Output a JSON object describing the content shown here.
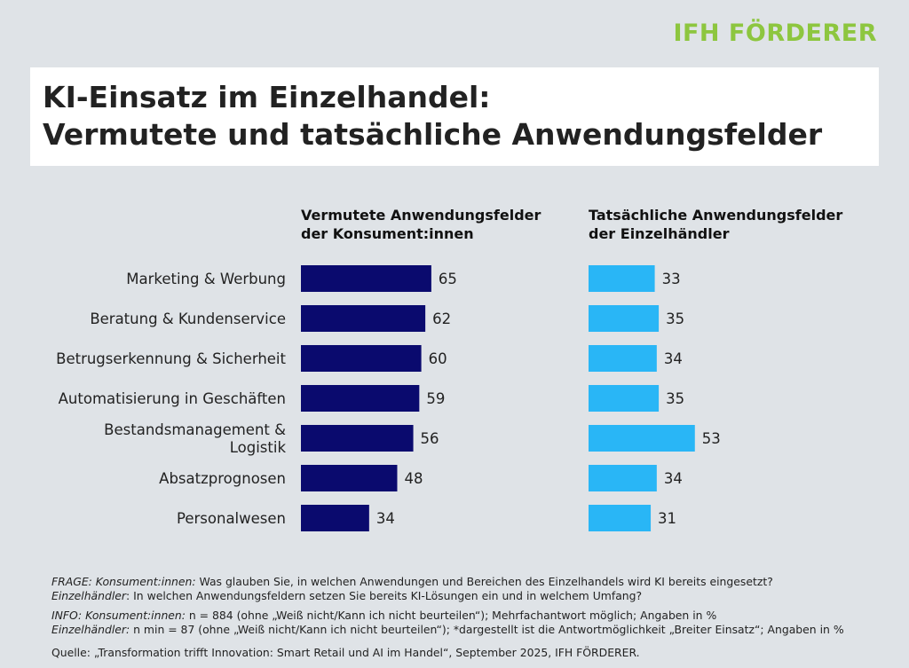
{
  "brand": {
    "name": "IFH FÖRDERER",
    "color": "#8dc63f"
  },
  "title": {
    "line1": "KI-Einsatz im Einzelhandel:",
    "line2": "Vermutete und tatsächliche Anwendungsfelder"
  },
  "chart_data": {
    "type": "bar",
    "orientation": "horizontal",
    "categories": [
      [
        "Marketing & Werbung"
      ],
      [
        "Beratung & Kundenservice"
      ],
      [
        "Betrugserkennung & Sicherheit"
      ],
      [
        "Automatisierung in Geschäften"
      ],
      [
        "Bestandsmanagement &",
        "Logistik"
      ],
      [
        "Absatzprognosen"
      ],
      [
        "Personalwesen"
      ]
    ],
    "series": [
      {
        "name_line1": "Vermutete Anwendungsfelder",
        "name_line2": "der Konsument:innen",
        "color": "#0a0a6e",
        "values": [
          65,
          62,
          60,
          59,
          56,
          48,
          34
        ]
      },
      {
        "name_line1": "Tatsächliche Anwendungsfelder",
        "name_line2": "der Einzelhändler",
        "color": "#29b6f6",
        "values": [
          33,
          35,
          34,
          35,
          53,
          34,
          31
        ]
      }
    ]
  },
  "footer": {
    "frage_prefix": "FRAGE: Konsument:innen:",
    "frage_text": " Was glauben Sie, in welchen Anwendungen und Bereichen des Einzelhandels wird KI bereits eingesetzt?",
    "frage2_prefix": "Einzelhändler",
    "frage2_text": ": In welchen Anwendungsfeldern setzen Sie bereits KI-Lösungen ein und in welchem Umfang?",
    "info_prefix": "INFO: Konsument:innen:",
    "info_text": " n = 884 (ohne „Weiß nicht/Kann ich nicht beurteilen“); Mehrfachantwort möglich; Angaben in %",
    "info2_prefix": "Einzelhändler:",
    "info2_text": " n min = 87 (ohne „Weiß nicht/Kann ich nicht beurteilen“); *dargestellt ist die Antwortmöglichkeit „Breiter Einsatz“; Angaben in %",
    "quelle": "Quelle: „Transformation trifft Innovation: Smart Retail und AI im Handel“, September 2025, IFH FÖRDERER."
  }
}
